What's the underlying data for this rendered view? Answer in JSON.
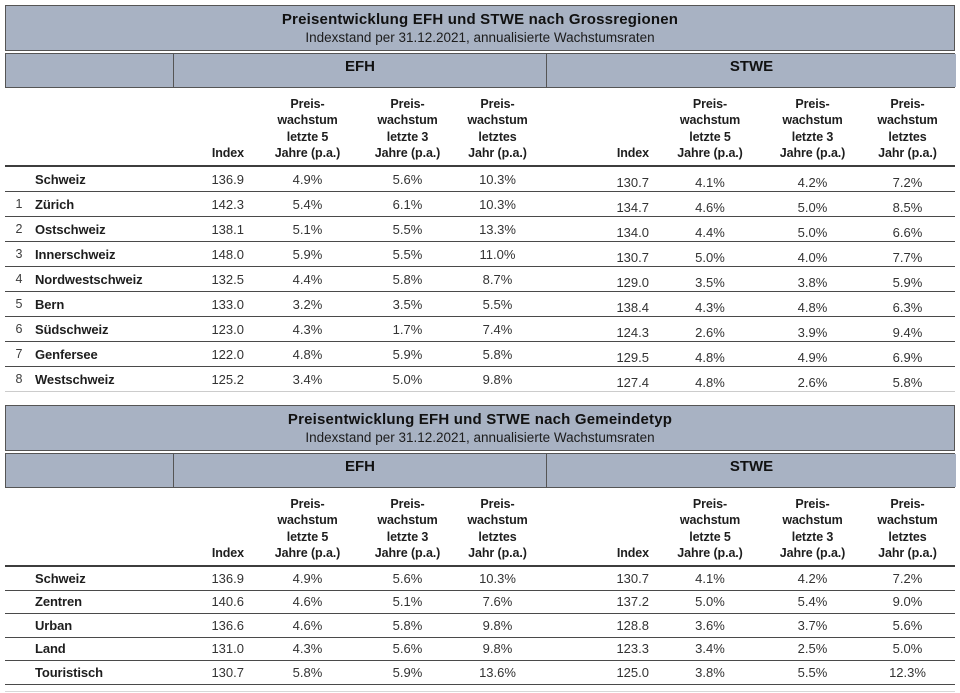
{
  "page": {
    "header_bg": "#a8b2c3",
    "border_dark": "#4a4a4a"
  },
  "column_headers": {
    "index": "Index",
    "growth5": "Preis-\nwachstum\nletzte 5\nJahre (p.a.)",
    "growth3": "Preis-\nwachstum\nletzte 3\nJahre (p.a.)",
    "growth1": "Preis-\nwachstum\nletztes\nJahr (p.a.)"
  },
  "tables": [
    {
      "title": "Preisentwicklung EFH und STWE nach Grossregionen",
      "subtitle": "Indexstand per 31.12.2021, annualisierte Wachstumsraten",
      "group_headers": [
        "EFH",
        "STWE"
      ],
      "rows": [
        {
          "num": "",
          "name": "Schweiz",
          "efh": [
            "136.9",
            "4.9%",
            "5.6%",
            "10.3%"
          ],
          "stwe": [
            "130.7",
            "4.1%",
            "4.2%",
            "7.2%"
          ]
        },
        {
          "num": "1",
          "name": "Zürich",
          "efh": [
            "142.3",
            "5.4%",
            "6.1%",
            "10.3%"
          ],
          "stwe": [
            "134.7",
            "4.6%",
            "5.0%",
            "8.5%"
          ]
        },
        {
          "num": "2",
          "name": "Ostschweiz",
          "efh": [
            "138.1",
            "5.1%",
            "5.5%",
            "13.3%"
          ],
          "stwe": [
            "134.0",
            "4.4%",
            "5.0%",
            "6.6%"
          ]
        },
        {
          "num": "3",
          "name": "Innerschweiz",
          "efh": [
            "148.0",
            "5.9%",
            "5.5%",
            "11.0%"
          ],
          "stwe": [
            "130.7",
            "5.0%",
            "4.0%",
            "7.7%"
          ]
        },
        {
          "num": "4",
          "name": "Nordwestschweiz",
          "efh": [
            "132.5",
            "4.4%",
            "5.8%",
            "8.7%"
          ],
          "stwe": [
            "129.0",
            "3.5%",
            "3.8%",
            "5.9%"
          ]
        },
        {
          "num": "5",
          "name": "Bern",
          "efh": [
            "133.0",
            "3.2%",
            "3.5%",
            "5.5%"
          ],
          "stwe": [
            "138.4",
            "4.3%",
            "4.8%",
            "6.3%"
          ]
        },
        {
          "num": "6",
          "name": "Südschweiz",
          "efh": [
            "123.0",
            "4.3%",
            "1.7%",
            "7.4%"
          ],
          "stwe": [
            "124.3",
            "2.6%",
            "3.9%",
            "9.4%"
          ]
        },
        {
          "num": "7",
          "name": "Genfersee",
          "efh": [
            "122.0",
            "4.8%",
            "5.9%",
            "5.8%"
          ],
          "stwe": [
            "129.5",
            "4.8%",
            "4.9%",
            "6.9%"
          ]
        },
        {
          "num": "8",
          "name": "Westschweiz",
          "efh": [
            "125.2",
            "3.4%",
            "5.0%",
            "9.8%"
          ],
          "stwe": [
            "127.4",
            "4.8%",
            "2.6%",
            "5.8%"
          ]
        }
      ]
    },
    {
      "title": "Preisentwicklung EFH und STWE nach Gemeindetyp",
      "subtitle": "Indexstand per 31.12.2021, annualisierte Wachstumsraten",
      "group_headers": [
        "EFH",
        "STWE"
      ],
      "rows": [
        {
          "num": "",
          "name": "Schweiz",
          "efh": [
            "136.9",
            "4.9%",
            "5.6%",
            "10.3%"
          ],
          "stwe": [
            "130.7",
            "4.1%",
            "4.2%",
            "7.2%"
          ]
        },
        {
          "num": "",
          "name": "Zentren",
          "efh": [
            "140.6",
            "4.6%",
            "5.1%",
            "7.6%"
          ],
          "stwe": [
            "137.2",
            "5.0%",
            "5.4%",
            "9.0%"
          ]
        },
        {
          "num": "",
          "name": "Urban",
          "efh": [
            "136.6",
            "4.6%",
            "5.8%",
            "9.8%"
          ],
          "stwe": [
            "128.8",
            "3.6%",
            "3.7%",
            "5.6%"
          ]
        },
        {
          "num": "",
          "name": "Land",
          "efh": [
            "131.0",
            "4.3%",
            "5.6%",
            "9.8%"
          ],
          "stwe": [
            "123.3",
            "3.4%",
            "2.5%",
            "5.0%"
          ]
        },
        {
          "num": "",
          "name": "Touristisch",
          "efh": [
            "130.7",
            "5.8%",
            "5.9%",
            "13.6%"
          ],
          "stwe": [
            "125.0",
            "3.8%",
            "5.5%",
            "12.3%"
          ]
        }
      ]
    }
  ]
}
